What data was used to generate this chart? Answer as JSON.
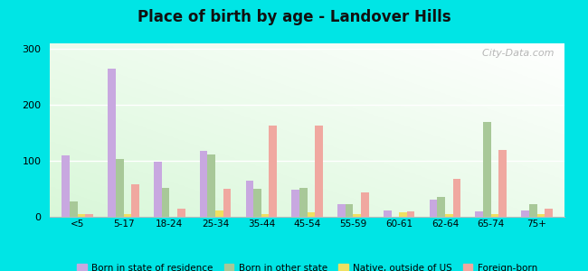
{
  "title": "Place of birth by age - Landover Hills",
  "categories": [
    "<5",
    "5-17",
    "18-24",
    "25-34",
    "35-44",
    "45-54",
    "55-59",
    "60-61",
    "62-64",
    "65-74",
    "75+"
  ],
  "series": {
    "Born in state of residence": [
      110,
      265,
      98,
      118,
      65,
      48,
      22,
      12,
      30,
      10,
      12
    ],
    "Born in other state": [
      27,
      103,
      52,
      112,
      50,
      52,
      22,
      0,
      35,
      170,
      22
    ],
    "Native, outside of US": [
      5,
      5,
      0,
      12,
      5,
      8,
      5,
      8,
      5,
      5,
      5
    ],
    "Foreign-born": [
      5,
      58,
      14,
      50,
      163,
      163,
      43,
      10,
      68,
      120,
      14
    ]
  },
  "colors": {
    "Born in state of residence": "#c8a8e0",
    "Born in other state": "#a8c898",
    "Native, outside of US": "#f0e060",
    "Foreign-born": "#f0a8a0"
  },
  "ylim": [
    0,
    310
  ],
  "yticks": [
    0,
    100,
    200,
    300
  ],
  "outer_background": "#00e5e5",
  "watermark": "  City-Data.com"
}
